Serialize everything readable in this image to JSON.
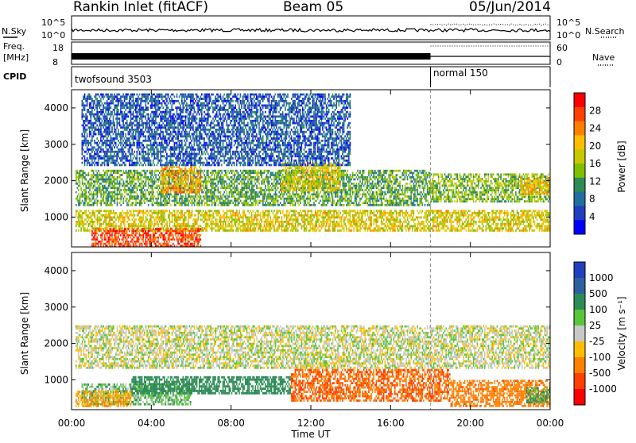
{
  "header": {
    "station": "Rankin Inlet (fitACF)",
    "beam": "Beam 05",
    "date": "05/Jun/2014"
  },
  "nsky_panel": {
    "left_label": "N.Sky",
    "right_label": "N.Search",
    "left_ticks": [
      "10^5",
      "10^0"
    ],
    "right_ticks": [
      "10^5",
      "10^0"
    ]
  },
  "freq_panel": {
    "left_label_1": "Freq.",
    "left_label_2": "[MHz]",
    "right_label": "Nave",
    "left_ticks": [
      "18",
      "8"
    ],
    "right_ticks": [
      "60",
      "0"
    ]
  },
  "cpid_panel": {
    "label": "CPID",
    "mode_1": "twofsound 3503",
    "mode_2": "normal 150",
    "mode_change_hour": 18.0
  },
  "chart_data": [
    {
      "type": "heatmap",
      "name": "power",
      "ylabel": "Slant Range [km]",
      "ylim": [
        180,
        4500
      ],
      "yticks": [
        "1000",
        "2000",
        "3000",
        "4000"
      ],
      "xlim": [
        "00:00",
        "24:00"
      ],
      "colorbar_label": "Power [dB]",
      "colorbar_ticks": [
        "28",
        "24",
        "20",
        "16",
        "12",
        "8",
        "4"
      ],
      "colorbar_colors": [
        "#ff0000",
        "#ff4000",
        "#ff7f00",
        "#ffbf00",
        "#c8c800",
        "#7fbf00",
        "#2e8b57",
        "#1f6f9f",
        "#1f3fbf",
        "#0000ff"
      ],
      "scatter_regions": [
        {
          "x0": 0.2,
          "x1": 18.0,
          "y0": 1300,
          "y1": 2300,
          "level": 12
        },
        {
          "x0": 18.0,
          "x1": 24.0,
          "y0": 1400,
          "y1": 2200,
          "level": 14
        },
        {
          "x0": 4.5,
          "x1": 6.5,
          "y0": 1650,
          "y1": 2400,
          "level": 22
        },
        {
          "x0": 10.5,
          "x1": 13.5,
          "y0": 1700,
          "y1": 2500,
          "level": 18
        },
        {
          "x0": 0.2,
          "x1": 24.0,
          "y0": 600,
          "y1": 1200,
          "level": 18
        },
        {
          "x0": 1.0,
          "x1": 6.5,
          "y0": 180,
          "y1": 700,
          "level": 27
        },
        {
          "x0": 22.5,
          "x1": 24.0,
          "y0": 1600,
          "y1": 2100,
          "level": 20
        },
        {
          "x0": 0.5,
          "x1": 14.0,
          "y0": 2400,
          "y1": 4400,
          "level": 6
        }
      ]
    },
    {
      "type": "heatmap",
      "name": "velocity",
      "ylabel": "Slant Range [km]",
      "ylim": [
        180,
        4500
      ],
      "yticks": [
        "1000",
        "2000",
        "3000",
        "4000"
      ],
      "xlim": [
        "00:00",
        "24:00"
      ],
      "xlabel": "Time UT",
      "xticks": [
        "00:00",
        "04:00",
        "08:00",
        "12:00",
        "16:00",
        "20:00",
        "00:00"
      ],
      "colorbar_label": "Velocity [m s⁻¹]",
      "colorbar_ticks": [
        "1000",
        "500",
        "100",
        "25",
        "-25",
        "-100",
        "-500",
        "-1000"
      ],
      "colorbar_colors": [
        "#1f3fbf",
        "#2e5f9f",
        "#2e8b57",
        "#59c53a",
        "#c8c8c8",
        "#ffbf00",
        "#ff8000",
        "#ff4000",
        "#ff0000"
      ],
      "scatter_regions": [
        {
          "x0": 0.2,
          "x1": 24.0,
          "y0": 1300,
          "y1": 2500,
          "vel": 0
        },
        {
          "x0": 0.5,
          "x1": 6.0,
          "y0": 300,
          "y1": 900,
          "vel": 60
        },
        {
          "x0": 3.0,
          "x1": 11.0,
          "y0": 600,
          "y1": 1100,
          "vel": 200
        },
        {
          "x0": 11.0,
          "x1": 19.0,
          "y0": 400,
          "y1": 1300,
          "vel": -300
        },
        {
          "x0": 19.0,
          "x1": 24.0,
          "y0": 250,
          "y1": 1000,
          "vel": -250
        },
        {
          "x0": 22.8,
          "x1": 24.0,
          "y0": 350,
          "y1": 800,
          "vel": 100
        },
        {
          "x0": 0.2,
          "x1": 3.0,
          "y0": 250,
          "y1": 700,
          "vel": -80
        }
      ]
    }
  ]
}
